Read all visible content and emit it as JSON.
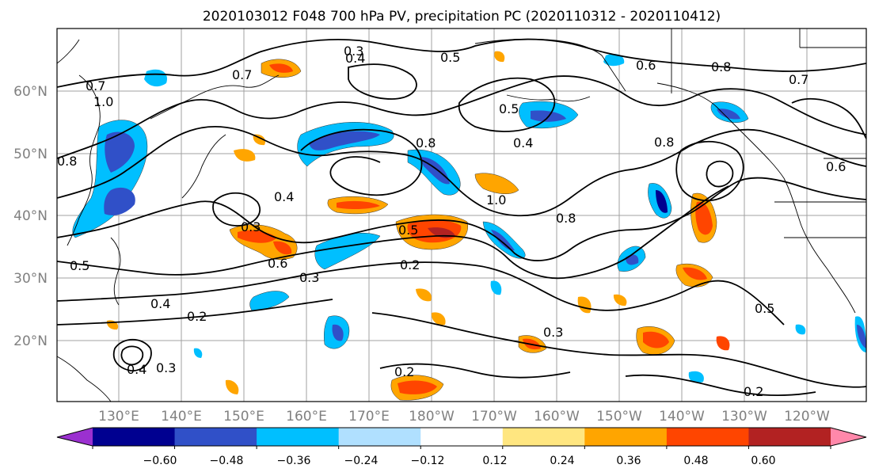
{
  "title": "2020103012 F048 700 hPa PV, precipitation PC (2020110312 - 2020110412)",
  "map": {
    "lat_labels": [
      "60°N",
      "50°N",
      "40°N",
      "30°N",
      "20°N"
    ],
    "lon_labels": [
      "130°E",
      "140°E",
      "150°E",
      "160°E",
      "170°E",
      "180°W",
      "170°W",
      "160°W",
      "150°W",
      "140°W",
      "130°W",
      "120°W"
    ],
    "contour_labels": [
      "0.7",
      "1.0",
      "0.8",
      "0.3",
      "0.4",
      "0.5",
      "0.7",
      "0.6",
      "0.8",
      "0.6",
      "0.5",
      "0.4",
      "0.8",
      "0.4",
      "0.3",
      "0.5",
      "0.2",
      "0.4",
      "0.2",
      "0.4",
      "0.3",
      "0.8",
      "0.6",
      "0.3",
      "0.2",
      "0.5",
      "0.3",
      "0.8",
      "0.5",
      "0.7",
      "1.0",
      "0.2"
    ]
  },
  "colorbar": {
    "colors": [
      "#9b30d0",
      "#000090",
      "#3050c8",
      "#00bfff",
      "#b0e0ff",
      "#ffffff",
      "#ffe680",
      "#ffa500",
      "#ff4500",
      "#b22222",
      "#ff88aa"
    ],
    "tick_labels": [
      "−0.60",
      "−0.48",
      "−0.36",
      "−0.24",
      "−0.12",
      "0.12",
      "0.24",
      "0.36",
      "0.48",
      "0.60"
    ]
  }
}
